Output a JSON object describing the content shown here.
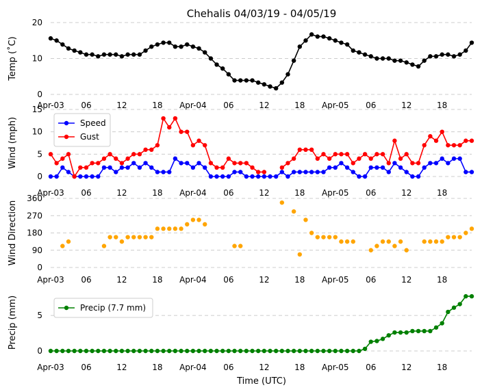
{
  "figure": {
    "title": "Chehalis 04/03/19 - 04/05/19",
    "xlabel": "Time (UTC)"
  },
  "chart_data": [
    {
      "type": "line",
      "title": "Chehalis 04/03/19 - 04/05/19",
      "ylabel": "Temp (˚C)",
      "ylim": [
        0,
        20
      ],
      "yticks": [
        0,
        10,
        20
      ],
      "x_tick_labels": [
        "Apr-03",
        "06",
        "12",
        "18",
        "Apr-04",
        "06",
        "12",
        "18",
        "Apr-05",
        "06",
        "12",
        "18"
      ],
      "x_hours_per_point": 1,
      "grid": true,
      "legend": "",
      "series": [
        {
          "name": "",
          "color": "#000000",
          "values": [
            15.6,
            15.0,
            13.9,
            12.8,
            12.2,
            11.7,
            11.1,
            11.1,
            10.6,
            11.1,
            11.1,
            11.1,
            10.6,
            11.1,
            11.1,
            11.1,
            12.2,
            13.3,
            13.9,
            14.4,
            14.4,
            13.3,
            13.3,
            13.9,
            13.3,
            12.8,
            11.7,
            10.0,
            8.3,
            7.2,
            5.6,
            3.9,
            3.9,
            3.9,
            3.9,
            3.3,
            2.8,
            2.2,
            1.7,
            3.3,
            5.6,
            9.4,
            13.3,
            15.0,
            16.7,
            16.1,
            16.1,
            15.6,
            15.0,
            14.4,
            13.9,
            12.2,
            11.7,
            11.1,
            10.6,
            10.0,
            10.0,
            10.0,
            9.4,
            9.4,
            8.9,
            8.3,
            7.8,
            9.4,
            10.6,
            10.6,
            11.1,
            11.1,
            10.6,
            11.1,
            12.2,
            14.4
          ]
        }
      ]
    },
    {
      "type": "line",
      "ylabel": "Wind (mph)",
      "ylim": [
        0,
        15
      ],
      "yticks": [
        0,
        5,
        10,
        15
      ],
      "x_tick_labels": [
        "Apr-03",
        "06",
        "12",
        "18",
        "Apr-04",
        "06",
        "12",
        "18",
        "Apr-05",
        "06",
        "12",
        "18"
      ],
      "grid": true,
      "legend": "top-left",
      "series": [
        {
          "name": "Speed",
          "color": "#0000ff",
          "values": [
            0,
            0,
            2,
            1,
            0,
            0,
            0,
            0,
            0,
            2,
            2,
            1,
            2,
            2,
            3,
            2,
            3,
            2,
            1,
            1,
            1,
            4,
            3,
            3,
            2,
            3,
            2,
            0,
            0,
            0,
            0,
            1,
            1,
            0,
            0,
            0,
            0,
            0,
            0,
            1,
            0,
            1,
            1,
            1,
            1,
            1,
            1,
            2,
            2,
            3,
            2,
            1,
            0,
            0,
            2,
            2,
            2,
            1,
            3,
            2,
            1,
            0,
            0,
            2,
            3,
            3,
            4,
            3,
            4,
            4,
            1,
            1
          ]
        },
        {
          "name": "Gust",
          "color": "#ff0000",
          "values": [
            5,
            3,
            4,
            5,
            0,
            2,
            2,
            3,
            3,
            4,
            5,
            4,
            3,
            4,
            5,
            5,
            6,
            6,
            7,
            13,
            11,
            13,
            10,
            10,
            7,
            8,
            7,
            3,
            2,
            2,
            4,
            3,
            3,
            3,
            2,
            1,
            1,
            null,
            null,
            2,
            3,
            4,
            6,
            6,
            6,
            4,
            5,
            4,
            5,
            5,
            5,
            3,
            4,
            5,
            4,
            5,
            5,
            3,
            8,
            4,
            5,
            3,
            3,
            7,
            9,
            8,
            10,
            7,
            7,
            7,
            8,
            8
          ]
        }
      ]
    },
    {
      "type": "scatter",
      "ylabel": "Wind Direction",
      "ylim": [
        0,
        360
      ],
      "yticks": [
        0,
        90,
        180,
        270,
        360
      ],
      "x_tick_labels": [
        "Apr-03",
        "06",
        "12",
        "18",
        "Apr-04",
        "06",
        "12",
        "18",
        "Apr-05",
        "06",
        "12",
        "18"
      ],
      "grid": true,
      "legend": "",
      "series": [
        {
          "name": "",
          "color": "#ffa500",
          "values": [
            null,
            null,
            112,
            135,
            null,
            null,
            null,
            null,
            null,
            112,
            158,
            158,
            135,
            158,
            158,
            158,
            158,
            158,
            202,
            202,
            202,
            202,
            202,
            225,
            248,
            248,
            225,
            null,
            null,
            null,
            null,
            112,
            112,
            null,
            null,
            null,
            null,
            null,
            null,
            338,
            null,
            292,
            68,
            248,
            180,
            158,
            158,
            158,
            158,
            135,
            135,
            135,
            null,
            null,
            90,
            112,
            135,
            135,
            112,
            135,
            90,
            null,
            null,
            135,
            135,
            135,
            135,
            158,
            158,
            158,
            180,
            202
          ]
        }
      ]
    },
    {
      "type": "line",
      "ylabel": "Precip (mm)",
      "ylim": [
        0,
        8
      ],
      "yticks": [
        0,
        5
      ],
      "x_tick_labels": [
        "Apr-03",
        "06",
        "12",
        "18",
        "Apr-04",
        "06",
        "12",
        "18",
        "Apr-05",
        "06",
        "12",
        "18"
      ],
      "xlabel": "Time (UTC)",
      "grid": true,
      "legend": "top-left",
      "series": [
        {
          "name": "Precip (7.7 mm)",
          "color": "#008000",
          "values": [
            0,
            0,
            0,
            0,
            0,
            0,
            0,
            0,
            0,
            0,
            0,
            0,
            0,
            0,
            0,
            0,
            0,
            0,
            0,
            0,
            0,
            0,
            0,
            0,
            0,
            0,
            0,
            0,
            0,
            0,
            0,
            0,
            0,
            0,
            0,
            0,
            0,
            0,
            0,
            0,
            0,
            0,
            0,
            0,
            0,
            0,
            0,
            0,
            0,
            0,
            0,
            0,
            0,
            0.3,
            1.3,
            1.4,
            1.7,
            2.2,
            2.6,
            2.6,
            2.6,
            2.8,
            2.8,
            2.8,
            2.8,
            3.3,
            3.9,
            5.5,
            6.1,
            6.6,
            7.7,
            7.7
          ]
        }
      ]
    }
  ]
}
